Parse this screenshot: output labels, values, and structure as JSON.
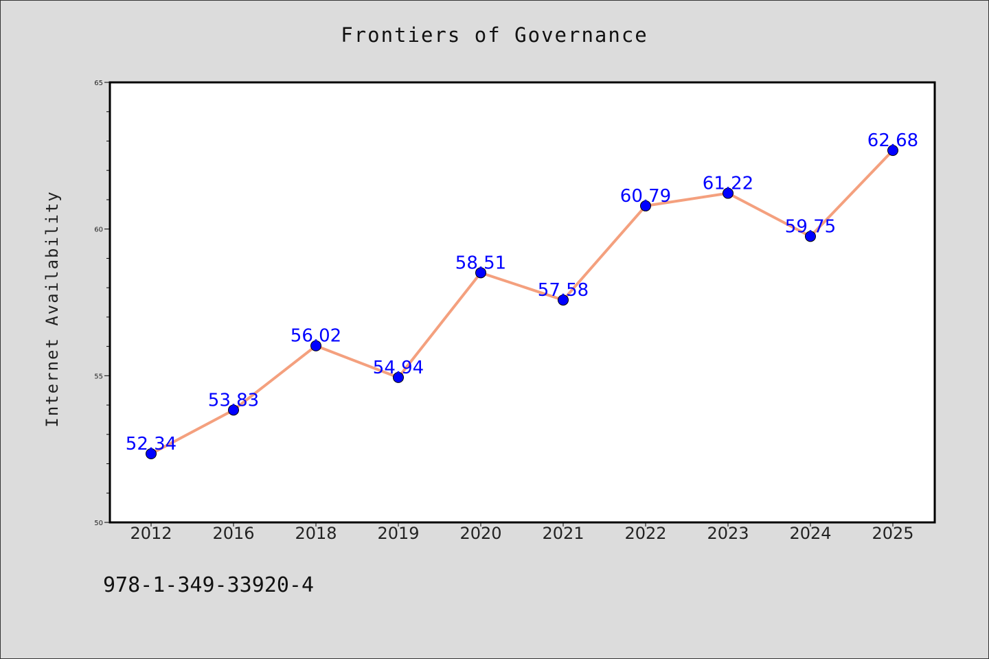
{
  "chart_data": {
    "type": "line",
    "title": "Frontiers of Governance",
    "xlabel": "",
    "ylabel": "Internet Availability",
    "categories": [
      "2012",
      "2016",
      "2018",
      "2019",
      "2020",
      "2021",
      "2022",
      "2023",
      "2024",
      "2025"
    ],
    "series": [
      {
        "values": [
          52.34,
          53.83,
          56.02,
          54.94,
          58.51,
          57.58,
          60.79,
          61.22,
          59.75,
          62.68
        ]
      }
    ],
    "data_labels": [
      "52.34",
      "53.83",
      "56.02",
      "54.94",
      "58.51",
      "57.58",
      "60.79",
      "61.22",
      "59.75",
      "62.68"
    ],
    "ylim": [
      50,
      65
    ],
    "yticks": [
      "50",
      "55",
      "60",
      "65"
    ],
    "line_color": "#f4a07e",
    "marker_color": "#0000ff",
    "label_color": "#0000ff",
    "grid": false,
    "legend": "none"
  },
  "footnote": "978-1-349-33920-4"
}
